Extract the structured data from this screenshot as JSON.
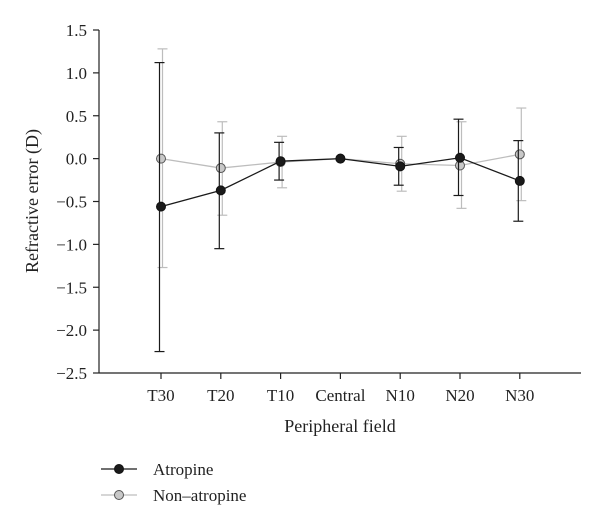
{
  "chart_data": {
    "type": "line",
    "title": "",
    "xlabel": "Peripheral field",
    "ylabel": "Refractive error (D)",
    "categories": [
      "T30",
      "T20",
      "T10",
      "Central",
      "N10",
      "N20",
      "N30"
    ],
    "ylim": [
      -2.5,
      1.5
    ],
    "yticks": [
      "1.5",
      "1.0",
      "0.5",
      "0.0",
      "-0.5",
      "-1.0",
      "-1.5",
      "-2.0",
      "-2.5"
    ],
    "grid": false,
    "legend": "bottom-left",
    "series": [
      {
        "name": "Atropine",
        "color": "#1a1a1a",
        "marker_fill": "#1a1a1a",
        "values": [
          -0.56,
          -0.37,
          -0.03,
          0.0,
          -0.09,
          0.01,
          -0.26
        ],
        "err_low": [
          -2.25,
          -1.05,
          -0.25,
          0.0,
          -0.31,
          -0.43,
          -0.73
        ],
        "err_high": [
          1.12,
          0.3,
          0.19,
          0.0,
          0.13,
          0.46,
          0.21
        ]
      },
      {
        "name": "Non-atropine",
        "color": "#bdbdbd",
        "marker_fill": "#c8c8c8",
        "values": [
          0.0,
          -0.11,
          -0.04,
          0.0,
          -0.06,
          -0.08,
          0.05
        ],
        "err_low": [
          -1.27,
          -0.66,
          -0.34,
          0.0,
          -0.38,
          -0.58,
          -0.49
        ],
        "err_high": [
          1.28,
          0.43,
          0.26,
          0.0,
          0.26,
          0.43,
          0.59
        ]
      }
    ]
  }
}
